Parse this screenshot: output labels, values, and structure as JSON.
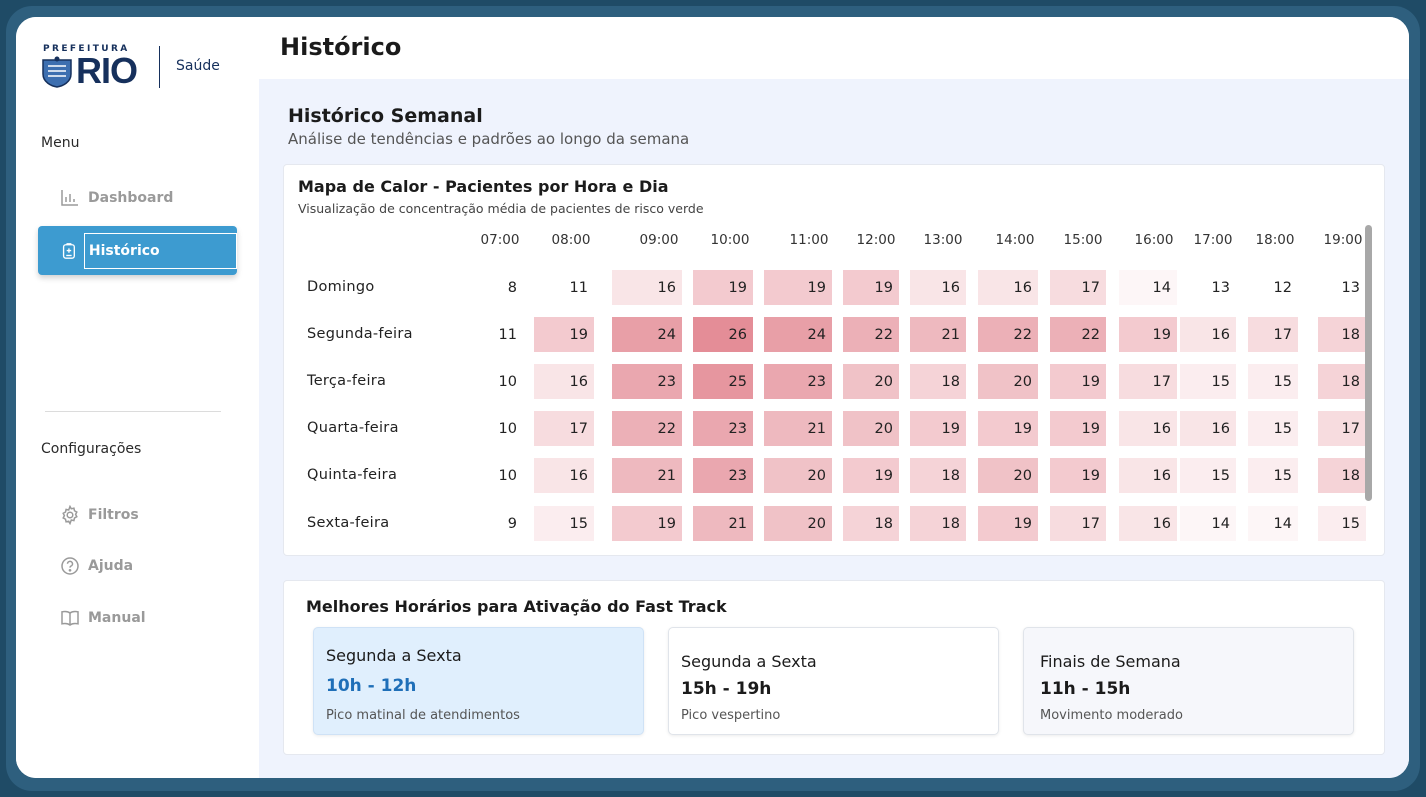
{
  "logo": {
    "prefeitura": "PREFEITURA",
    "rio": "RIO",
    "saude": "Saúde"
  },
  "sidebar": {
    "menu_label": "Menu",
    "menu_items": [
      {
        "label": "Dashboard",
        "icon": "bar-chart-icon",
        "active": false
      },
      {
        "label": "Histórico",
        "icon": "clipboard-icon",
        "active": true
      }
    ],
    "config_label": "Configurações",
    "config_items": [
      {
        "label": "Filtros",
        "icon": "gear-icon"
      },
      {
        "label": "Ajuda",
        "icon": "help-circle-icon"
      },
      {
        "label": "Manual",
        "icon": "book-icon"
      }
    ]
  },
  "header": {
    "title": "Histórico"
  },
  "section": {
    "title": "Histórico Semanal",
    "subtitle": "Análise de tendências e padrões ao longo da semana"
  },
  "heatmap": {
    "title": "Mapa de Calor - Pacientes por Hora e Dia",
    "subtitle": "Visualização de concentração média de pacientes de risco verde"
  },
  "chart_data": {
    "type": "heatmap",
    "title": "Mapa de Calor - Pacientes por Hora e Dia",
    "x": [
      "07:00",
      "08:00",
      "09:00",
      "10:00",
      "11:00",
      "12:00",
      "13:00",
      "14:00",
      "15:00",
      "16:00",
      "17:00",
      "18:00",
      "19:00"
    ],
    "y": [
      "Domingo",
      "Segunda-feira",
      "Terça-feira",
      "Quarta-feira",
      "Quinta-feira",
      "Sexta-feira"
    ],
    "values": [
      [
        8,
        11,
        16,
        19,
        19,
        19,
        16,
        16,
        17,
        14,
        13,
        12,
        13
      ],
      [
        11,
        19,
        24,
        26,
        24,
        22,
        21,
        22,
        22,
        19,
        16,
        17,
        18
      ],
      [
        10,
        16,
        23,
        25,
        23,
        20,
        18,
        20,
        19,
        17,
        15,
        15,
        18
      ],
      [
        10,
        17,
        22,
        23,
        21,
        20,
        19,
        19,
        19,
        16,
        16,
        15,
        17
      ],
      [
        10,
        16,
        21,
        23,
        20,
        19,
        18,
        20,
        19,
        16,
        15,
        15,
        18
      ],
      [
        9,
        15,
        19,
        21,
        20,
        18,
        18,
        19,
        17,
        16,
        14,
        14,
        15
      ]
    ],
    "color_scale": {
      "low": "#ffffff",
      "high": "#e48d97"
    }
  },
  "fast_track": {
    "title": "Melhores Horários para Ativação do Fast Track",
    "options": [
      {
        "title": "Segunda a Sexta",
        "time": "10h - 12h",
        "desc": "Pico matinal de atendimentos",
        "highlight": true
      },
      {
        "title": "Segunda a Sexta",
        "time": "15h - 19h",
        "desc": "Pico vespertino",
        "highlight": false
      },
      {
        "title": "Finais de Semana",
        "time": "11h - 15h",
        "desc": "Movimento moderado",
        "highlight": false
      }
    ],
    "colors": {
      "highlight_bg": "#e0effd",
      "highlight_time": "#1f6fb8",
      "neutral_bg": "#ffffff",
      "weekend_bg": "#f6f7fb"
    }
  }
}
